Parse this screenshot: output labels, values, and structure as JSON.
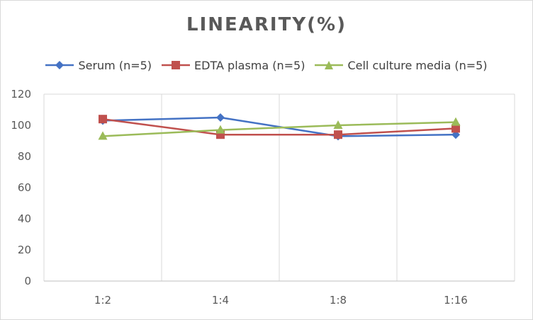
{
  "chart_data": {
    "type": "line",
    "title": "LINEARITY(%)",
    "xlabel": "",
    "ylabel": "",
    "categories": [
      "1:2",
      "1:4",
      "1:8",
      "1:16"
    ],
    "ylim": [
      0,
      120
    ],
    "yticks": [
      0,
      20,
      40,
      60,
      80,
      100,
      120
    ],
    "grid": "vertical",
    "legend_position": "top",
    "series": [
      {
        "name": "Serum (n=5)",
        "values": [
          103,
          105,
          93,
          94
        ],
        "color": "#4472c4",
        "marker": "diamond"
      },
      {
        "name": "EDTA plasma (n=5)",
        "values": [
          104,
          94,
          94,
          98
        ],
        "color": "#c0504d",
        "marker": "square"
      },
      {
        "name": "Cell culture media (n=5)",
        "values": [
          93,
          97,
          100,
          102
        ],
        "color": "#9bbb59",
        "marker": "triangle"
      }
    ]
  }
}
